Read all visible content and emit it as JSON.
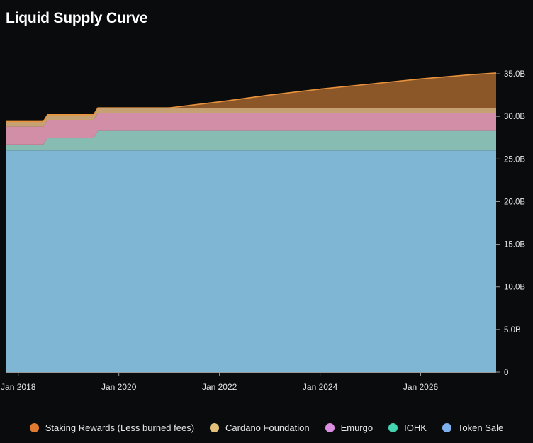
{
  "chart_data": {
    "type": "area",
    "stacked": true,
    "title": "Liquid Supply Curve",
    "x_ticks": [
      "Jan 2018",
      "Jan 2020",
      "Jan 2022",
      "Jan 2024",
      "Jan 2026"
    ],
    "y_ticks": [
      "0",
      "5.0B",
      "10.0B",
      "15.0B",
      "20.0B",
      "25.0B",
      "30.0B",
      "35.0B"
    ],
    "xlim": [
      "2017-10",
      "2027-07"
    ],
    "ylim": [
      0,
      37000000000
    ],
    "x": [
      "2017-10",
      "2018-07",
      "2018-08",
      "2019-07",
      "2019-08",
      "2020-01",
      "2020-07",
      "2021-01",
      "2022-01",
      "2023-01",
      "2024-01",
      "2025-01",
      "2026-01",
      "2027-01",
      "2027-07"
    ],
    "series": [
      {
        "name": "Token Sale",
        "color": "#7eb6d4",
        "values": [
          26000000000,
          26000000000,
          26000000000,
          26000000000,
          26000000000,
          26000000000,
          26000000000,
          26000000000,
          26000000000,
          26000000000,
          26000000000,
          26000000000,
          26000000000,
          26000000000,
          26000000000
        ]
      },
      {
        "name": "IOHK",
        "color": "#86bcb2",
        "values": [
          700000000,
          700000000,
          1500000000,
          1500000000,
          2300000000,
          2300000000,
          2300000000,
          2300000000,
          2300000000,
          2300000000,
          2300000000,
          2300000000,
          2300000000,
          2300000000,
          2300000000
        ]
      },
      {
        "name": "Emurgo",
        "color": "#d18ea6",
        "values": [
          2100000000,
          2100000000,
          2100000000,
          2100000000,
          2100000000,
          2100000000,
          2100000000,
          2100000000,
          2100000000,
          2100000000,
          2100000000,
          2100000000,
          2100000000,
          2100000000,
          2100000000
        ]
      },
      {
        "name": "Cardano Foundation",
        "color": "#c5a173",
        "values": [
          600000000,
          600000000,
          600000000,
          600000000,
          600000000,
          600000000,
          600000000,
          600000000,
          600000000,
          600000000,
          600000000,
          600000000,
          600000000,
          600000000,
          600000000
        ]
      },
      {
        "name": "Staking Rewards (Less burned fees)",
        "color": "#8b5729",
        "values": [
          0,
          0,
          0,
          0,
          0,
          0,
          0,
          0,
          700000000,
          1500000000,
          2200000000,
          2800000000,
          3400000000,
          3900000000,
          4100000000
        ]
      }
    ],
    "legend_position": "bottom",
    "y_axis_position": "right",
    "grid": false
  },
  "legend": [
    {
      "label": "Staking Rewards (Less burned fees)",
      "color": "#e07a30"
    },
    {
      "label": "Cardano Foundation",
      "color": "#e3c07a"
    },
    {
      "label": "Emurgo",
      "color": "#dc8fe0"
    },
    {
      "label": "IOHK",
      "color": "#45d4b0"
    },
    {
      "label": "Token Sale",
      "color": "#7fb1ee"
    }
  ]
}
